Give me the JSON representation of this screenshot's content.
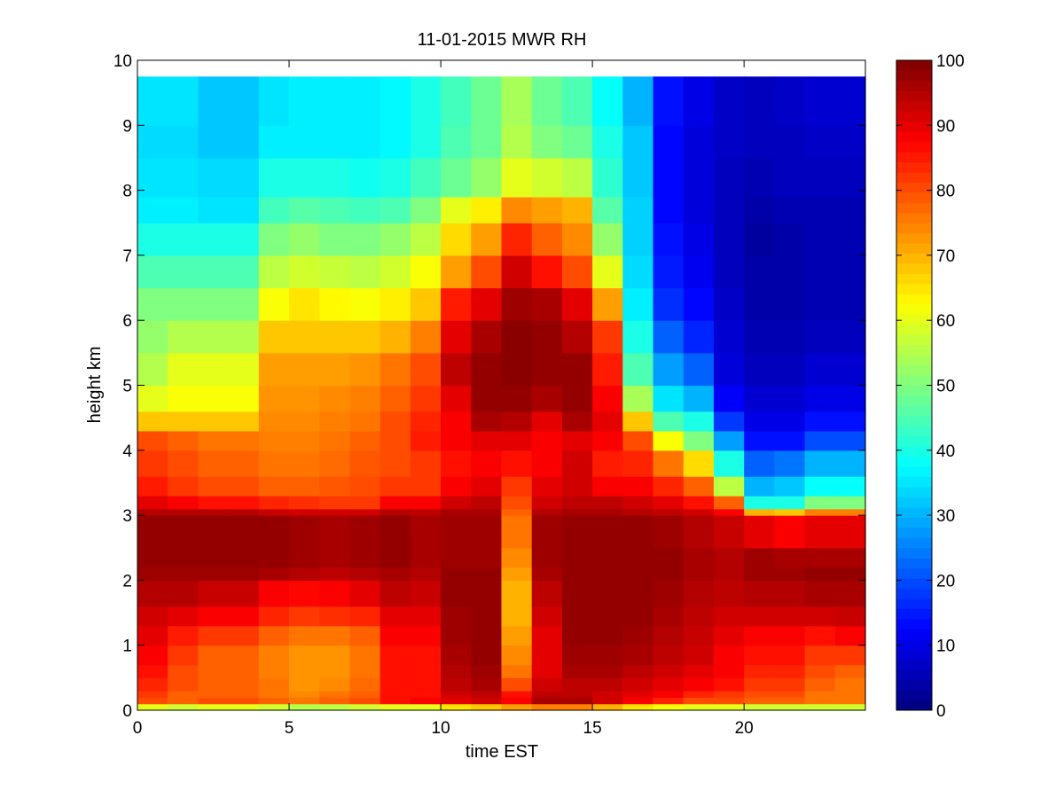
{
  "chart_data": {
    "type": "heatmap",
    "title": "11-01-2015 MWR RH",
    "xlabel": "time EST",
    "ylabel": "height km",
    "xlim": [
      0,
      24
    ],
    "ylim": [
      0,
      10
    ],
    "x_ticks": [
      0,
      5,
      10,
      15,
      20
    ],
    "y_ticks": [
      0,
      1,
      2,
      3,
      4,
      5,
      6,
      7,
      8,
      9,
      10
    ],
    "x_tick_labels": [
      "0",
      "5",
      "10",
      "15",
      "20"
    ],
    "y_tick_labels": [
      "0",
      "1",
      "2",
      "3",
      "4",
      "5",
      "6",
      "7",
      "8",
      "9",
      "10"
    ],
    "colorbar": {
      "colormap": "jet",
      "range": [
        0,
        100
      ],
      "ticks": [
        0,
        10,
        20,
        30,
        40,
        50,
        60,
        70,
        80,
        90,
        100
      ],
      "tick_labels": [
        "0",
        "10",
        "20",
        "30",
        "40",
        "50",
        "60",
        "70",
        "80",
        "90",
        "100"
      ]
    },
    "x_start": 0,
    "x_step": 1,
    "x_count": 24,
    "y_top": 9.75,
    "profile_heights_km": [
      0.0,
      0.1,
      0.2,
      0.3,
      0.5,
      0.7,
      1.0,
      1.3,
      1.6,
      2.0,
      2.2,
      2.5,
      3.0,
      3.1,
      3.3,
      3.6,
      4.0,
      4.3,
      4.6,
      5.0,
      5.5,
      6.0,
      6.5,
      7.0,
      7.5,
      7.9,
      8.5,
      9.0,
      9.75
    ],
    "profiles_rh": [
      [
        60,
        80,
        82,
        84,
        86,
        88,
        90,
        92,
        95,
        97,
        98,
        98,
        95,
        90,
        85,
        82,
        80,
        68,
        60,
        55,
        52,
        50,
        45,
        40,
        36,
        35,
        34,
        35,
        35
      ],
      [
        58,
        78,
        78,
        80,
        80,
        82,
        85,
        90,
        95,
        97,
        98,
        98,
        95,
        88,
        82,
        80,
        78,
        68,
        62,
        60,
        55,
        50,
        45,
        40,
        36,
        35,
        34,
        35,
        35
      ],
      [
        60,
        80,
        78,
        78,
        78,
        78,
        82,
        88,
        93,
        97,
        98,
        98,
        95,
        86,
        80,
        78,
        76,
        68,
        62,
        60,
        55,
        50,
        45,
        40,
        35,
        34,
        32,
        32,
        33
      ],
      [
        60,
        80,
        78,
        78,
        78,
        78,
        82,
        88,
        93,
        97,
        98,
        98,
        95,
        86,
        80,
        78,
        76,
        68,
        62,
        60,
        55,
        50,
        45,
        40,
        35,
        34,
        32,
        32,
        33
      ],
      [
        58,
        78,
        76,
        76,
        75,
        75,
        78,
        84,
        88,
        96,
        98,
        98,
        93,
        84,
        78,
        76,
        75,
        74,
        73,
        72,
        68,
        62,
        56,
        50,
        44,
        40,
        36,
        35,
        36
      ],
      [
        55,
        76,
        74,
        73,
        73,
        73,
        76,
        82,
        87,
        95,
        97,
        97,
        92,
        83,
        78,
        76,
        75,
        74,
        73,
        72,
        68,
        65,
        58,
        52,
        46,
        40,
        36,
        36,
        37
      ],
      [
        56,
        78,
        76,
        74,
        73,
        73,
        76,
        83,
        88,
        94,
        96,
        96,
        92,
        82,
        79,
        77,
        76,
        75,
        74,
        72,
        68,
        63,
        57,
        50,
        45,
        40,
        36,
        36,
        37
      ],
      [
        58,
        80,
        78,
        77,
        76,
        76,
        78,
        84,
        90,
        95,
        97,
        97,
        92,
        82,
        80,
        79,
        78,
        76,
        75,
        73,
        68,
        62,
        56,
        50,
        44,
        39,
        36,
        36,
        37
      ],
      [
        60,
        86,
        86,
        86,
        86,
        86,
        88,
        90,
        94,
        96,
        98,
        98,
        95,
        88,
        82,
        80,
        80,
        80,
        78,
        76,
        70,
        64,
        58,
        52,
        45,
        40,
        37,
        37,
        37
      ],
      [
        60,
        88,
        86,
        86,
        86,
        86,
        88,
        90,
        93,
        95,
        96,
        96,
        94,
        88,
        82,
        82,
        85,
        84,
        82,
        80,
        75,
        68,
        62,
        56,
        50,
        44,
        40,
        40,
        40
      ],
      [
        65,
        90,
        92,
        94,
        95,
        96,
        97,
        97,
        98,
        98,
        97,
        97,
        96,
        92,
        88,
        86,
        88,
        88,
        90,
        94,
        90,
        85,
        72,
        66,
        60,
        48,
        45,
        44,
        44
      ],
      [
        68,
        92,
        94,
        96,
        97,
        98,
        98,
        98,
        98,
        98,
        97,
        97,
        96,
        94,
        90,
        88,
        90,
        96,
        98,
        98,
        96,
        90,
        80,
        72,
        64,
        52,
        48,
        48,
        48
      ],
      [
        72,
        88,
        86,
        80,
        76,
        74,
        72,
        70,
        70,
        72,
        74,
        76,
        78,
        80,
        82,
        86,
        90,
        95,
        98,
        99,
        99,
        97,
        92,
        84,
        74,
        60,
        55,
        54,
        55
      ],
      [
        75,
        96,
        94,
        92,
        90,
        90,
        90,
        92,
        94,
        96,
        97,
        97,
        95,
        92,
        90,
        88,
        88,
        90,
        96,
        98,
        98,
        96,
        86,
        78,
        72,
        58,
        50,
        48,
        48
      ],
      [
        75,
        96,
        94,
        94,
        96,
        97,
        98,
        98,
        98,
        98,
        98,
        98,
        96,
        94,
        92,
        92,
        90,
        96,
        98,
        98,
        95,
        90,
        80,
        74,
        70,
        56,
        48,
        45,
        45
      ],
      [
        70,
        92,
        92,
        94,
        96,
        97,
        98,
        98,
        98,
        98,
        98,
        98,
        96,
        94,
        88,
        85,
        88,
        90,
        88,
        85,
        82,
        72,
        60,
        52,
        46,
        42,
        40,
        38,
        38
      ],
      [
        65,
        88,
        90,
        92,
        94,
        96,
        97,
        98,
        98,
        98,
        98,
        98,
        95,
        92,
        88,
        84,
        80,
        68,
        54,
        45,
        40,
        36,
        34,
        33,
        33,
        32,
        32,
        30,
        28
      ],
      [
        62,
        84,
        88,
        90,
        92,
        94,
        95,
        96,
        97,
        98,
        98,
        97,
        94,
        90,
        84,
        76,
        62,
        45,
        35,
        28,
        22,
        17,
        15,
        14,
        13,
        13,
        13,
        14,
        16
      ],
      [
        60,
        80,
        84,
        88,
        90,
        92,
        93,
        94,
        95,
        96,
        96,
        95,
        92,
        86,
        78,
        66,
        50,
        40,
        30,
        22,
        16,
        13,
        11,
        10,
        9,
        9,
        9,
        10,
        11
      ],
      [
        60,
        80,
        82,
        86,
        88,
        88,
        90,
        92,
        94,
        95,
        95,
        93,
        88,
        78,
        56,
        40,
        28,
        18,
        12,
        9,
        8,
        7,
        6,
        6,
        6,
        6,
        7,
        7,
        8
      ],
      [
        58,
        78,
        80,
        82,
        84,
        86,
        88,
        92,
        95,
        97,
        97,
        90,
        70,
        40,
        30,
        22,
        14,
        10,
        8,
        6,
        5,
        4,
        4,
        3,
        4,
        5,
        6,
        6,
        7
      ],
      [
        58,
        78,
        80,
        82,
        84,
        86,
        88,
        92,
        95,
        97,
        96,
        88,
        68,
        40,
        32,
        24,
        14,
        10,
        8,
        6,
        5,
        4,
        4,
        4,
        5,
        6,
        6,
        7,
        8
      ],
      [
        58,
        76,
        76,
        78,
        80,
        82,
        86,
        92,
        96,
        98,
        96,
        90,
        75,
        50,
        38,
        30,
        20,
        14,
        10,
        8,
        6,
        5,
        5,
        5,
        5,
        6,
        7,
        8,
        9
      ],
      [
        58,
        76,
        76,
        76,
        78,
        82,
        88,
        93,
        96,
        98,
        96,
        90,
        75,
        50,
        38,
        30,
        20,
        14,
        10,
        8,
        6,
        5,
        5,
        5,
        5,
        6,
        7,
        8,
        9
      ]
    ]
  }
}
